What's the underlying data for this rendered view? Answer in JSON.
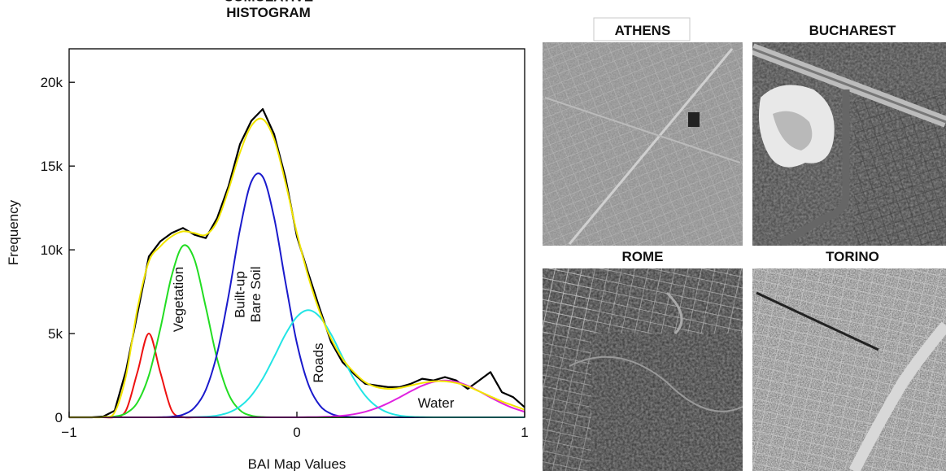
{
  "chart_data": {
    "type": "line",
    "title": "CUMULATIVE\nHISTOGRAM",
    "x_label": "BAI Map Values",
    "y_label": "Frequency",
    "x": [
      -1,
      -0.95,
      -0.9,
      -0.85,
      -0.8,
      -0.75,
      -0.7,
      -0.65,
      -0.6,
      -0.55,
      -0.5,
      -0.45,
      -0.4,
      -0.35,
      -0.3,
      -0.25,
      -0.2,
      -0.15,
      -0.1,
      -0.05,
      0,
      0.05,
      0.1,
      0.15,
      0.2,
      0.25,
      0.3,
      0.35,
      0.4,
      0.45,
      0.5,
      0.55,
      0.6,
      0.65,
      0.7,
      0.75,
      0.8,
      0.85,
      0.9,
      0.95,
      1
    ],
    "series": [
      {
        "color": "#000000",
        "values": [
          0,
          0,
          0,
          50,
          400,
          2800,
          6200,
          9600,
          10500,
          11000,
          11300,
          10900,
          10700,
          11900,
          13800,
          16300,
          17700,
          18400,
          16900,
          14300,
          10800,
          8600,
          6500,
          4500,
          3300,
          2600,
          2000,
          1900,
          1800,
          1800,
          2000,
          2300,
          2200,
          2400,
          2200,
          1700,
          2200,
          2700,
          1500,
          1200,
          600
        ]
      },
      {
        "color": "#ee1111",
        "values": [
          0,
          0,
          0,
          0,
          19,
          423,
          2700,
          5000,
          2700,
          423,
          19,
          0,
          0,
          0,
          0,
          0,
          0,
          0,
          0,
          0,
          0,
          0,
          0,
          0,
          0,
          0,
          0,
          0,
          0,
          0,
          0,
          0,
          0,
          0,
          0,
          0,
          0,
          0,
          0,
          0,
          0
        ]
      },
      {
        "name": "Vegetation",
        "color": "#22dd22",
        "values": [
          0,
          0,
          0,
          8,
          50,
          244,
          895,
          2496,
          5270,
          8440,
          10240,
          9430,
          6575,
          3477,
          1393,
          424,
          97,
          17,
          2,
          0,
          0,
          0,
          0,
          0,
          0,
          0,
          0,
          0,
          0,
          0,
          0,
          0,
          0,
          0,
          0,
          0,
          0,
          0,
          0,
          0,
          0
        ]
      },
      {
        "name": "Built-up\nBare Soil",
        "color": "#1a1acc",
        "values": [
          0,
          0,
          0,
          0,
          0,
          0,
          0,
          0,
          7,
          37,
          162,
          572,
          1640,
          3826,
          7260,
          11210,
          14070,
          14360,
          11920,
          8050,
          4425,
          1975,
          718,
          212,
          51,
          10,
          0,
          0,
          0,
          0,
          0,
          0,
          0,
          0,
          0,
          0,
          0,
          0,
          0,
          0,
          0
        ]
      },
      {
        "name": "Roads",
        "color": "#22e5e5",
        "values": [
          0,
          0,
          0,
          0,
          0,
          0,
          0,
          0,
          0,
          0,
          3,
          11,
          36,
          108,
          281,
          644,
          1300,
          2307,
          3605,
          4959,
          6004,
          6400,
          6004,
          4959,
          3605,
          2307,
          1300,
          644,
          281,
          108,
          36,
          11,
          0,
          0,
          0,
          0,
          0,
          0,
          0,
          0,
          0
        ]
      },
      {
        "name": "Water",
        "color": "#e022e0",
        "values": [
          0,
          0,
          0,
          0,
          0,
          0,
          0,
          0,
          0,
          0,
          0,
          0,
          0,
          0,
          0,
          0,
          0,
          0,
          0,
          0,
          0,
          8,
          21,
          46,
          97,
          186,
          332,
          549,
          839,
          1187,
          1555,
          1885,
          2117,
          2200,
          2117,
          1885,
          1555,
          1187,
          839,
          549,
          332
        ]
      },
      {
        "color": "#f2e600",
        "values": [
          0,
          0,
          0,
          20,
          300,
          2500,
          6500,
          9300,
          10200,
          10800,
          11100,
          11000,
          10900,
          11700,
          13600,
          15800,
          17400,
          17800,
          16600,
          14000,
          11000,
          8400,
          6300,
          4700,
          3500,
          2700,
          2100,
          1800,
          1700,
          1750,
          1900,
          2050,
          2150,
          2150,
          2050,
          1850,
          1550,
          1250,
          950,
          700,
          450
        ]
      }
    ],
    "xlim": [
      -1,
      1
    ],
    "xticks": [
      {
        "value": -1,
        "label": "−1"
      },
      0,
      1
    ],
    "ylim": [
      0,
      22000
    ],
    "yticks": [
      0,
      {
        "value": 5000,
        "label": "5k"
      },
      {
        "value": 10000,
        "label": "10k"
      },
      {
        "value": 15000,
        "label": "15k"
      },
      {
        "value": 20000,
        "label": "20k"
      }
    ]
  },
  "image_panels": {
    "labels": [
      "ATHENS",
      "BUCHAREST",
      "ROME",
      "TORINO"
    ]
  }
}
